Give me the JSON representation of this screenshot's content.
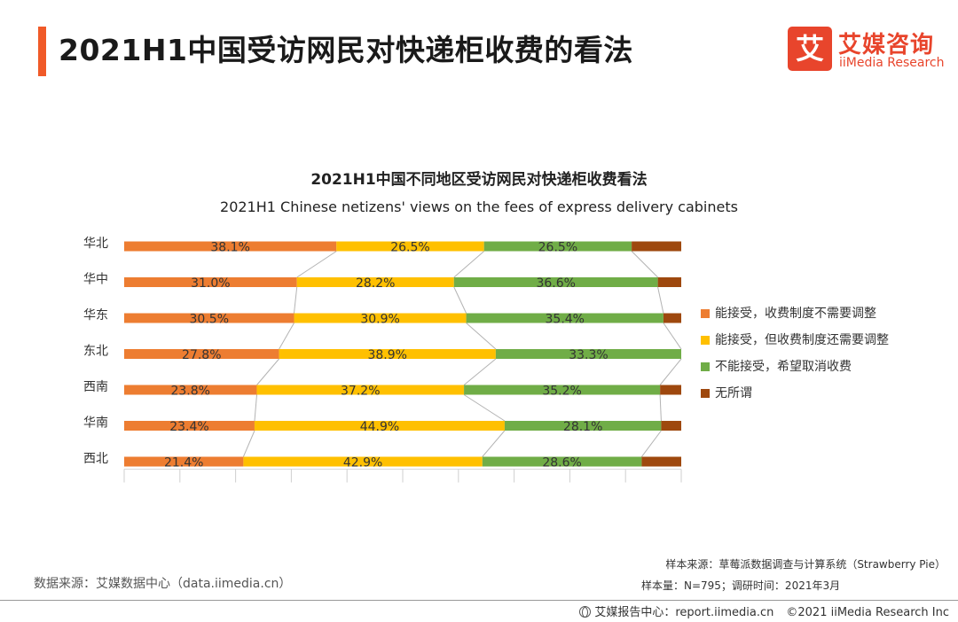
{
  "header": {
    "title": "2021H1中国受访网民对快递柜收费的看法",
    "accent_color": "#f05a28"
  },
  "logo": {
    "mark": "艾",
    "name_cn": "艾媒咨询",
    "name_en": "iiMedia Research",
    "color": "#e8452c"
  },
  "chart_data": {
    "type": "bar",
    "orientation": "horizontal",
    "stacked": true,
    "percent_stacked": true,
    "title": "2021H1中国不同地区受访网民对快递柜收费看法",
    "subtitle": "2021H1 Chinese netizens' views on the fees of express delivery cabinets",
    "categories": [
      "华北",
      "华中",
      "华东",
      "东北",
      "西南",
      "华南",
      "西北"
    ],
    "series": [
      {
        "name": "能接受，收费制度不需要调整",
        "color": "#ed7d31",
        "values": [
          38.1,
          31.0,
          30.5,
          27.8,
          23.8,
          23.4,
          21.4
        ],
        "labels": [
          "38.1%",
          "31.0%",
          "30.5%",
          "27.8%",
          "23.8%",
          "23.4%",
          "21.4%"
        ]
      },
      {
        "name": "能接受，但收费制度还需要调整",
        "color": "#ffc000",
        "values": [
          26.5,
          28.2,
          30.9,
          38.9,
          37.2,
          44.9,
          42.9
        ],
        "labels": [
          "26.5%",
          "28.2%",
          "30.9%",
          "38.9%",
          "37.2%",
          "44.9%",
          "42.9%"
        ]
      },
      {
        "name": "不能接受，希望取消收费",
        "color": "#70ad47",
        "values": [
          26.5,
          36.6,
          35.4,
          33.3,
          35.2,
          28.1,
          28.6
        ],
        "labels": [
          "26.5%",
          "36.6%",
          "35.4%",
          "33.3%",
          "35.2%",
          "28.1%",
          "28.6%"
        ]
      },
      {
        "name": "无所谓",
        "color": "#9e480e",
        "values": [
          8.9,
          4.2,
          3.2,
          0.0,
          3.8,
          3.6,
          7.1
        ],
        "labels": [
          "",
          "",
          "",
          "",
          "",
          "",
          ""
        ]
      }
    ],
    "legend_position": "right",
    "series_lines": true,
    "grid": false,
    "xlim": [
      0,
      100
    ]
  },
  "footer": {
    "source": "数据来源：艾媒数据中心（data.iimedia.cn）",
    "sample_source": "样本来源：草莓派数据调查与计算系统（Strawberry Pie）",
    "sample_info": "样本量：N=795；调研时间：2021年3月",
    "report_center": "艾媒报告中心：report.iimedia.cn",
    "copyright": "©2021  iiMedia Research  Inc"
  }
}
